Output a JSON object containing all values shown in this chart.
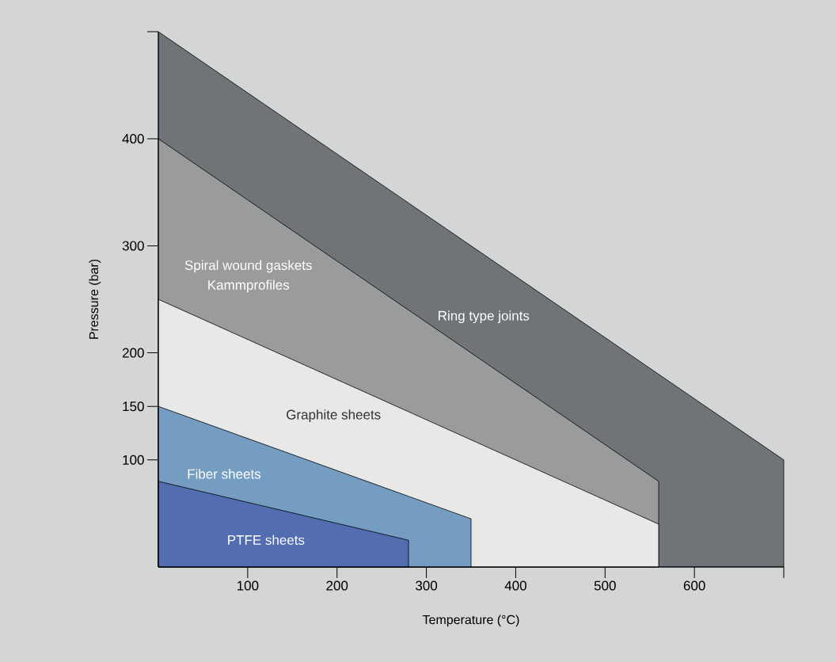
{
  "chart_data": {
    "type": "area",
    "xlabel": "Temperature (°C)",
    "ylabel": "Pressure (bar)",
    "xlim": [
      0,
      700
    ],
    "xticks": [
      100,
      200,
      300,
      400,
      500,
      600,
      {
        "value": 700,
        "label": null
      }
    ],
    "ylim": [
      0,
      500
    ],
    "yticks": [
      100,
      150,
      200,
      300,
      400,
      {
        "value": 500,
        "label": null
      }
    ],
    "series": [
      {
        "name": "Ring type joints",
        "color": "#6f7478",
        "x": [
          0,
          700,
          700
        ],
        "values": [
          500,
          100,
          0
        ]
      },
      {
        "name": "Spiral wound gaskets",
        "color": "#9a9c9b",
        "x": [
          0,
          560,
          560
        ],
        "values": [
          400,
          80,
          0
        ]
      },
      {
        "name": "Graphite sheets",
        "color": "#e8e8e8",
        "x": [
          0,
          560,
          560
        ],
        "values": [
          250,
          40,
          0
        ]
      },
      {
        "name": "Fiber sheets",
        "color": "#759dc2",
        "x": [
          0,
          350,
          350
        ],
        "values": [
          150,
          45,
          0
        ]
      },
      {
        "name": "PTFE sheets",
        "color": "#526eb0",
        "x": [
          0,
          280,
          280
        ],
        "values": [
          80,
          25,
          0
        ]
      }
    ],
    "annotations": [
      "Kammprofiles"
    ]
  }
}
